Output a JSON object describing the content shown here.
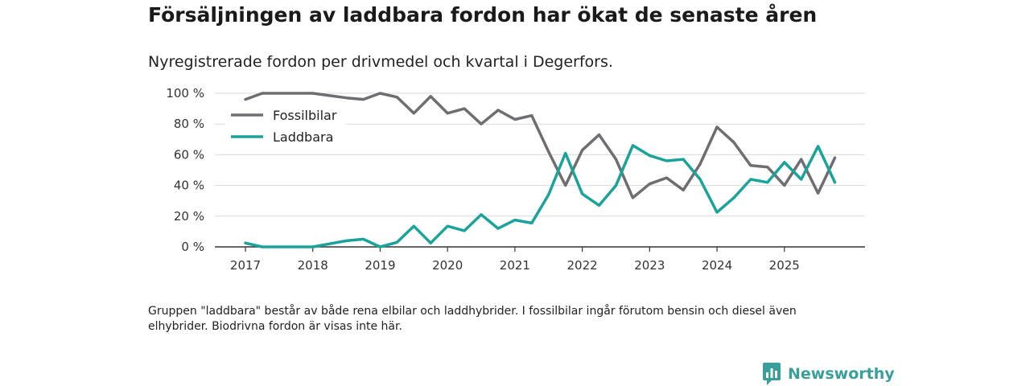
{
  "chart_data": {
    "type": "line",
    "title": "Försäljningen av laddbara fordon har ökat de senaste åren",
    "subtitle": "Nyregistrerade fordon per drivmedel och kvartal i Degerfors.",
    "xlabel": "",
    "ylabel": "",
    "ylim": [
      0,
      100
    ],
    "yticks": [
      "0 %",
      "20 %",
      "40 %",
      "60 %",
      "80 %",
      "100 %"
    ],
    "ytick_values": [
      0,
      20,
      40,
      60,
      80,
      100
    ],
    "x_tick_labels": [
      "2017",
      "2018",
      "2019",
      "2020",
      "2021",
      "2022",
      "2023",
      "2024",
      "2025"
    ],
    "x_start_year": 2017,
    "grid": true,
    "legend_position": "top-left",
    "series": [
      {
        "name": "Fossilbilar",
        "color": "#6e6e72",
        "values": [
          96,
          100,
          100,
          100,
          100,
          98.5,
          97,
          96,
          100,
          97.5,
          87,
          98,
          87,
          90,
          80,
          89,
          83,
          85.5,
          62,
          40,
          63,
          73,
          57,
          32,
          41,
          45,
          37,
          54,
          78,
          68,
          53,
          52,
          40,
          57,
          35,
          58
        ]
      },
      {
        "name": "Laddbara",
        "color": "#1aa39a",
        "values": [
          2.5,
          0,
          0,
          0,
          0,
          2,
          4,
          5,
          0,
          3,
          13.5,
          2.5,
          13.5,
          10.5,
          21,
          12,
          17.5,
          15.5,
          34,
          61,
          34.5,
          27,
          40,
          66,
          59.5,
          56,
          57,
          44,
          22.5,
          32,
          44,
          42,
          55,
          44,
          65.5,
          42
        ]
      }
    ]
  },
  "footnote": "Gruppen \"laddbara\" består av både rena elbilar och laddhybrider. I fossilbilar ingår förutom bensin och diesel även elhybrider. Biodrivna fordon är visas inte här.",
  "brand": {
    "name": "Newsworthy",
    "icon": "newsworthy-chart-bubble-icon",
    "color": "#3a9e9a"
  }
}
